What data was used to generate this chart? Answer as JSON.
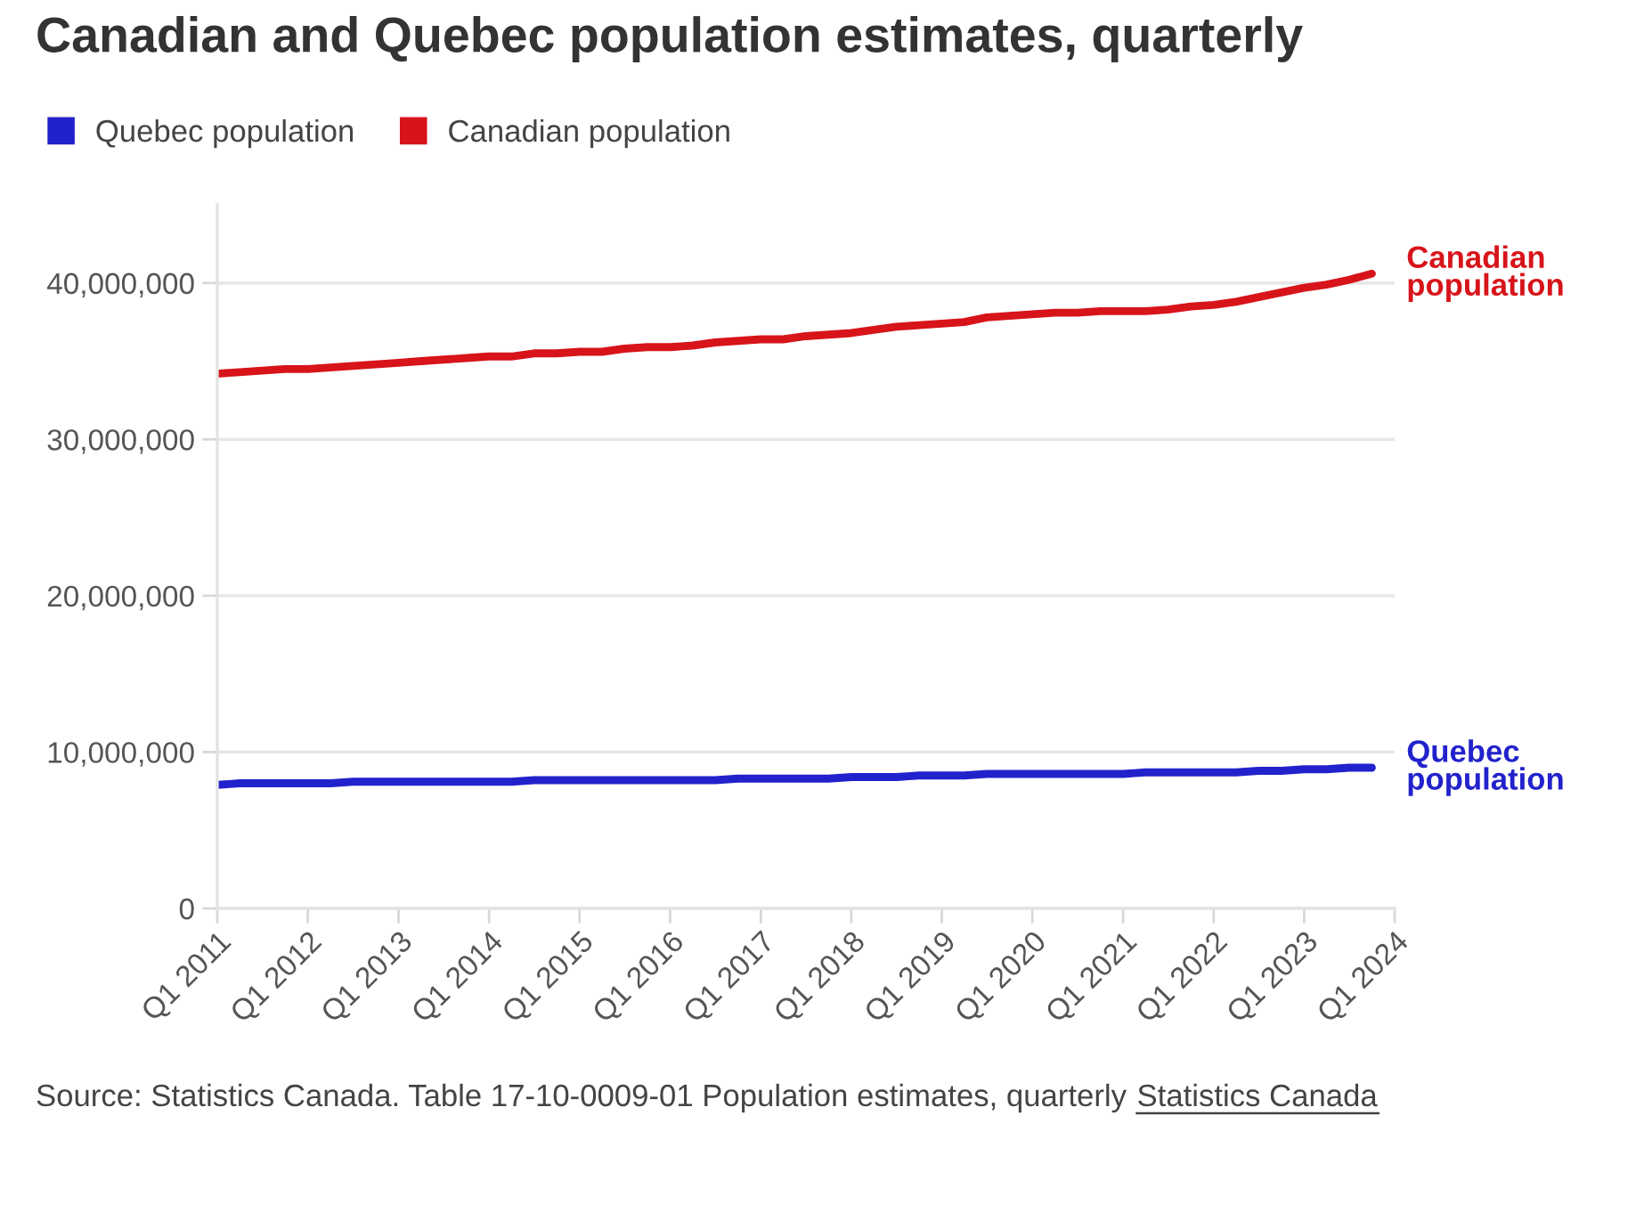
{
  "chart_data": {
    "type": "line",
    "title": "Canadian and Quebec population estimates, quarterly",
    "x": [
      "2011-01",
      "2011-04",
      "2011-07",
      "2011-10",
      "2012-01",
      "2012-04",
      "2012-07",
      "2012-10",
      "2013-01",
      "2013-04",
      "2013-07",
      "2013-10",
      "2014-01",
      "2014-04",
      "2014-07",
      "2014-10",
      "2015-01",
      "2015-04",
      "2015-07",
      "2015-10",
      "2016-01",
      "2016-04",
      "2016-07",
      "2016-10",
      "2017-01",
      "2017-04",
      "2017-07",
      "2017-10",
      "2018-01",
      "2018-04",
      "2018-07",
      "2018-10",
      "2019-01",
      "2019-04",
      "2019-07",
      "2019-10",
      "2020-01",
      "2020-04",
      "2020-07",
      "2020-10",
      "2021-01",
      "2021-04",
      "2021-07",
      "2021-10",
      "2022-01",
      "2022-04",
      "2022-07",
      "2022-10",
      "2023-01",
      "2023-04",
      "2023-07",
      "2023-10"
    ],
    "series": [
      {
        "name": "Quebec population",
        "color": "#2222cc",
        "values": [
          7900000,
          8000000,
          8000000,
          8000000,
          8000000,
          8000000,
          8100000,
          8100000,
          8100000,
          8100000,
          8100000,
          8100000,
          8100000,
          8100000,
          8200000,
          8200000,
          8200000,
          8200000,
          8200000,
          8200000,
          8200000,
          8200000,
          8200000,
          8300000,
          8300000,
          8300000,
          8300000,
          8300000,
          8400000,
          8400000,
          8400000,
          8500000,
          8500000,
          8500000,
          8600000,
          8600000,
          8600000,
          8600000,
          8600000,
          8600000,
          8600000,
          8700000,
          8700000,
          8700000,
          8700000,
          8700000,
          8800000,
          8800000,
          8900000,
          8900000,
          9000000,
          9000000
        ]
      },
      {
        "name": "Canadian population",
        "color": "#d7141a",
        "values": [
          34200000,
          34300000,
          34400000,
          34500000,
          34500000,
          34600000,
          34700000,
          34800000,
          34900000,
          35000000,
          35100000,
          35200000,
          35300000,
          35300000,
          35500000,
          35500000,
          35600000,
          35600000,
          35800000,
          35900000,
          35900000,
          36000000,
          36200000,
          36300000,
          36400000,
          36400000,
          36600000,
          36700000,
          36800000,
          37000000,
          37200000,
          37300000,
          37400000,
          37500000,
          37800000,
          37900000,
          38000000,
          38100000,
          38100000,
          38200000,
          38200000,
          38200000,
          38300000,
          38500000,
          38600000,
          38800000,
          39100000,
          39400000,
          39700000,
          39900000,
          40200000,
          40600000
        ]
      }
    ],
    "xlim": [
      "2011-01",
      "2024-01"
    ],
    "xticks": [
      {
        "value": "2011-01",
        "label": "Q1 2011"
      },
      {
        "value": "2012-01",
        "label": "Q1 2012"
      },
      {
        "value": "2013-01",
        "label": "Q1 2013"
      },
      {
        "value": "2014-01",
        "label": "Q1 2014"
      },
      {
        "value": "2015-01",
        "label": "Q1 2015"
      },
      {
        "value": "2016-01",
        "label": "Q1 2016"
      },
      {
        "value": "2017-01",
        "label": "Q1 2017"
      },
      {
        "value": "2018-01",
        "label": "Q1 2018"
      },
      {
        "value": "2019-01",
        "label": "Q1 2019"
      },
      {
        "value": "2020-01",
        "label": "Q1 2020"
      },
      {
        "value": "2021-01",
        "label": "Q1 2021"
      },
      {
        "value": "2022-01",
        "label": "Q1 2022"
      },
      {
        "value": "2023-01",
        "label": "Q1 2023"
      },
      {
        "value": "2024-01",
        "label": "Q1 2024"
      }
    ],
    "ylim": [
      0,
      45000000
    ],
    "yticks": [
      0,
      {
        "value": 10000000,
        "label": "10,000,000"
      },
      {
        "value": 20000000,
        "label": "20,000,000"
      },
      {
        "value": 30000000,
        "label": "30,000,000"
      },
      {
        "value": 40000000,
        "label": "40,000,000"
      }
    ],
    "grid": "y",
    "legend": "top left",
    "annotations": [
      "Source: Statistics Canada. Table 17-10-0009-01 Population estimates, quarterly",
      "Statistics Canada"
    ]
  }
}
